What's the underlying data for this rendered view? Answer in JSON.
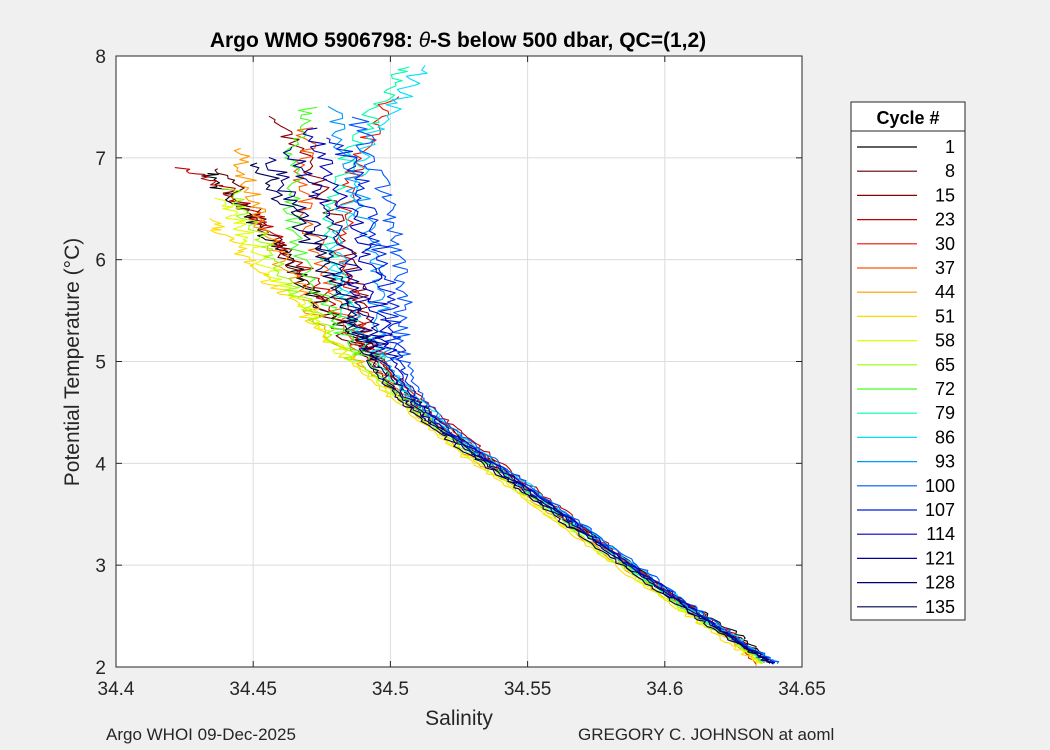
{
  "chart_data": {
    "type": "line",
    "title": "Argo WMO 5906798: θ-S below 500 dbar,  QC=(1,2)",
    "xlabel": "Salinity",
    "ylabel": "Potential Temperature (°C)",
    "xlim": [
      34.4,
      34.65
    ],
    "ylim": [
      2,
      8
    ],
    "xticks": [
      34.4,
      34.45,
      34.5,
      34.55,
      34.6,
      34.65
    ],
    "xtick_labels": [
      "34.4",
      "34.45",
      "34.5",
      "34.55",
      "34.6",
      "34.65"
    ],
    "yticks": [
      2,
      3,
      4,
      5,
      6,
      7,
      8
    ],
    "ytick_labels": [
      "2",
      "3",
      "4",
      "5",
      "6",
      "7",
      "8"
    ],
    "grid": true,
    "legend_title": "Cycle #",
    "legend_position": "outside-right",
    "series": [
      {
        "name": "1",
        "color": "#000000",
        "x": [
          34.433,
          34.442,
          34.452,
          34.462,
          34.474,
          34.487,
          34.5,
          34.512,
          34.528,
          34.546,
          34.566,
          34.588,
          34.61,
          34.628,
          34.638
        ],
        "y": [
          6.85,
          6.6,
          6.3,
          6.0,
          5.6,
          5.2,
          4.85,
          4.55,
          4.2,
          3.85,
          3.45,
          3.0,
          2.6,
          2.3,
          2.08
        ]
      },
      {
        "name": "8",
        "color": "#5a0000",
        "x": [
          34.438,
          34.448,
          34.458,
          34.468,
          34.478,
          34.49,
          34.502,
          34.515,
          34.531,
          34.549,
          34.569,
          34.59,
          34.611,
          34.628,
          34.639
        ],
        "y": [
          6.9,
          6.55,
          6.2,
          5.85,
          5.45,
          5.05,
          4.7,
          4.4,
          4.1,
          3.75,
          3.35,
          2.95,
          2.55,
          2.25,
          2.05
        ]
      },
      {
        "name": "15",
        "color": "#8b0000",
        "x": [
          34.458,
          34.47,
          34.478,
          34.485,
          34.49,
          34.495,
          34.503,
          34.514,
          34.529,
          34.546,
          34.566,
          34.587,
          34.609,
          34.627,
          34.637
        ],
        "y": [
          7.4,
          7.0,
          6.5,
          6.0,
          5.5,
          5.1,
          4.75,
          4.45,
          4.15,
          3.8,
          3.4,
          3.0,
          2.6,
          2.28,
          2.06
        ]
      },
      {
        "name": "23",
        "color": "#c00000",
        "x": [
          34.425,
          34.44,
          34.452,
          34.464,
          34.476,
          34.488,
          34.5,
          34.513,
          34.528,
          34.545,
          34.565,
          34.586,
          34.607,
          34.626,
          34.636
        ],
        "y": [
          6.9,
          6.7,
          6.4,
          6.05,
          5.65,
          5.25,
          4.9,
          4.6,
          4.25,
          3.9,
          3.5,
          3.05,
          2.62,
          2.3,
          2.04
        ]
      },
      {
        "name": "30",
        "color": "#ee1100",
        "x": [
          34.5,
          34.492,
          34.486,
          34.482,
          34.484,
          34.49,
          34.5,
          34.512,
          34.527,
          34.544,
          34.564,
          34.585,
          34.606,
          34.624,
          34.634
        ],
        "y": [
          7.6,
          7.2,
          6.8,
          6.3,
          5.8,
          5.3,
          4.9,
          4.55,
          4.22,
          3.88,
          3.48,
          3.05,
          2.62,
          2.28,
          2.02
        ]
      },
      {
        "name": "37",
        "color": "#ff5500",
        "x": [
          34.47,
          34.468,
          34.47,
          34.474,
          34.48,
          34.49,
          34.501,
          34.514,
          34.529,
          34.546,
          34.566,
          34.587,
          34.608,
          34.626,
          34.636
        ],
        "y": [
          7.3,
          6.9,
          6.45,
          6.0,
          5.55,
          5.1,
          4.75,
          4.45,
          4.15,
          3.8,
          3.4,
          3.0,
          2.58,
          2.26,
          2.05
        ]
      },
      {
        "name": "44",
        "color": "#ff9900",
        "x": [
          34.445,
          34.448,
          34.454,
          34.462,
          34.472,
          34.484,
          34.497,
          34.51,
          34.525,
          34.543,
          34.563,
          34.585,
          34.607,
          34.625,
          34.635
        ],
        "y": [
          7.1,
          6.7,
          6.3,
          5.9,
          5.5,
          5.1,
          4.78,
          4.47,
          4.15,
          3.8,
          3.4,
          2.98,
          2.57,
          2.25,
          2.04
        ]
      },
      {
        "name": "51",
        "color": "#ffdd00",
        "x": [
          34.435,
          34.441,
          34.45,
          34.46,
          34.471,
          34.484,
          34.496,
          34.509,
          34.524,
          34.542,
          34.562,
          34.584,
          34.606,
          34.624,
          34.634
        ],
        "y": [
          6.4,
          6.2,
          5.95,
          5.7,
          5.4,
          5.05,
          4.75,
          4.45,
          4.12,
          3.78,
          3.38,
          2.96,
          2.55,
          2.23,
          2.03
        ]
      },
      {
        "name": "58",
        "color": "#ddff00",
        "x": [
          34.438,
          34.444,
          34.452,
          34.461,
          34.472,
          34.484,
          34.497,
          34.51,
          34.525,
          34.543,
          34.563,
          34.584,
          34.606,
          34.625,
          34.635
        ],
        "y": [
          6.6,
          6.35,
          6.05,
          5.75,
          5.42,
          5.06,
          4.76,
          4.46,
          4.14,
          3.79,
          3.39,
          2.97,
          2.56,
          2.24,
          2.03
        ]
      },
      {
        "name": "65",
        "color": "#99ff00",
        "x": [
          34.442,
          34.448,
          34.455,
          34.463,
          34.473,
          34.485,
          34.498,
          34.511,
          34.526,
          34.544,
          34.564,
          34.585,
          34.607,
          34.625,
          34.636
        ],
        "y": [
          6.7,
          6.4,
          6.1,
          5.78,
          5.44,
          5.08,
          4.77,
          4.47,
          4.15,
          3.8,
          3.4,
          2.98,
          2.57,
          2.25,
          2.04
        ]
      },
      {
        "name": "72",
        "color": "#44ff22",
        "x": [
          34.47,
          34.465,
          34.464,
          34.467,
          34.475,
          34.486,
          34.499,
          34.512,
          34.527,
          34.545,
          34.565,
          34.586,
          34.607,
          34.626,
          34.636
        ],
        "y": [
          7.5,
          7.1,
          6.6,
          6.1,
          5.6,
          5.15,
          4.8,
          4.48,
          4.16,
          3.82,
          3.42,
          3.0,
          2.58,
          2.26,
          2.05
        ]
      },
      {
        "name": "79",
        "color": "#00ffaa",
        "x": [
          34.505,
          34.495,
          34.485,
          34.478,
          34.478,
          34.486,
          34.498,
          34.511,
          34.526,
          34.544,
          34.564,
          34.585,
          34.607,
          34.625,
          34.636
        ],
        "y": [
          7.9,
          7.5,
          7.0,
          6.5,
          6.0,
          5.4,
          4.9,
          4.55,
          4.2,
          3.85,
          3.45,
          3.02,
          2.6,
          2.27,
          2.05
        ]
      },
      {
        "name": "86",
        "color": "#00ddff",
        "x": [
          34.512,
          34.5,
          34.49,
          34.483,
          34.481,
          34.488,
          34.5,
          34.513,
          34.528,
          34.546,
          34.566,
          34.587,
          34.608,
          34.627,
          34.637
        ],
        "y": [
          7.9,
          7.45,
          6.95,
          6.45,
          5.95,
          5.4,
          4.92,
          4.57,
          4.22,
          3.87,
          3.47,
          3.04,
          2.61,
          2.28,
          2.06
        ]
      },
      {
        "name": "93",
        "color": "#0099ff",
        "x": [
          34.478,
          34.484,
          34.49,
          34.494,
          34.496,
          34.498,
          34.505,
          34.517,
          34.532,
          34.55,
          34.57,
          34.591,
          34.612,
          34.63,
          34.64
        ],
        "y": [
          7.5,
          7.0,
          6.5,
          6.0,
          5.5,
          5.05,
          4.7,
          4.4,
          4.1,
          3.75,
          3.35,
          2.93,
          2.52,
          2.2,
          2.05
        ]
      },
      {
        "name": "100",
        "color": "#0055ff",
        "x": [
          34.488,
          34.494,
          34.5,
          34.503,
          34.504,
          34.505,
          34.51,
          34.521,
          34.537,
          34.555,
          34.575,
          34.596,
          34.616,
          34.632,
          34.641
        ],
        "y": [
          7.4,
          6.9,
          6.45,
          6.0,
          5.55,
          5.1,
          4.7,
          4.38,
          4.05,
          3.7,
          3.3,
          2.88,
          2.48,
          2.18,
          2.04
        ]
      },
      {
        "name": "107",
        "color": "#0022dd",
        "x": [
          34.48,
          34.488,
          34.494,
          34.498,
          34.5,
          34.503,
          34.509,
          34.52,
          34.536,
          34.554,
          34.574,
          34.595,
          34.615,
          34.631,
          34.64
        ],
        "y": [
          7.2,
          6.8,
          6.35,
          5.9,
          5.45,
          5.02,
          4.65,
          4.35,
          4.03,
          3.68,
          3.28,
          2.86,
          2.47,
          2.17,
          2.03
        ]
      },
      {
        "name": "114",
        "color": "#0000bb",
        "x": [
          34.47,
          34.478,
          34.486,
          34.492,
          34.496,
          34.5,
          34.507,
          34.518,
          34.534,
          34.552,
          34.572,
          34.593,
          34.614,
          34.63,
          34.639
        ],
        "y": [
          7.3,
          6.85,
          6.4,
          5.95,
          5.5,
          5.05,
          4.68,
          4.38,
          4.06,
          3.72,
          3.32,
          2.9,
          2.5,
          2.19,
          2.03
        ]
      },
      {
        "name": "121",
        "color": "#000099",
        "x": [
          34.462,
          34.472,
          34.48,
          34.487,
          34.492,
          34.497,
          34.505,
          34.516,
          34.532,
          34.55,
          34.57,
          34.591,
          34.612,
          34.629,
          34.639
        ],
        "y": [
          7.1,
          6.7,
          6.3,
          5.88,
          5.45,
          5.03,
          4.68,
          4.38,
          4.07,
          3.73,
          3.33,
          2.91,
          2.51,
          2.2,
          2.04
        ]
      },
      {
        "name": "128",
        "color": "#000077",
        "x": [
          34.455,
          34.465,
          34.474,
          34.482,
          34.488,
          34.494,
          34.503,
          34.515,
          34.531,
          34.549,
          34.569,
          34.59,
          34.611,
          34.629,
          34.639
        ],
        "y": [
          7.0,
          6.6,
          6.2,
          5.8,
          5.4,
          5.0,
          4.67,
          4.38,
          4.07,
          3.73,
          3.33,
          2.92,
          2.52,
          2.21,
          2.04
        ]
      },
      {
        "name": "135",
        "color": "#000055",
        "x": [
          34.452,
          34.462,
          34.471,
          34.479,
          34.486,
          34.493,
          34.502,
          34.514,
          34.53,
          34.548,
          34.568,
          34.589,
          34.61,
          34.628,
          34.638
        ],
        "y": [
          6.95,
          6.55,
          6.15,
          5.75,
          5.36,
          4.98,
          4.66,
          4.37,
          4.06,
          3.72,
          3.32,
          2.91,
          2.51,
          2.2,
          2.04
        ]
      }
    ]
  },
  "footer": {
    "left": "Argo WHOI 09-Dec-2025",
    "right": "GREGORY C. JOHNSON at aoml"
  }
}
